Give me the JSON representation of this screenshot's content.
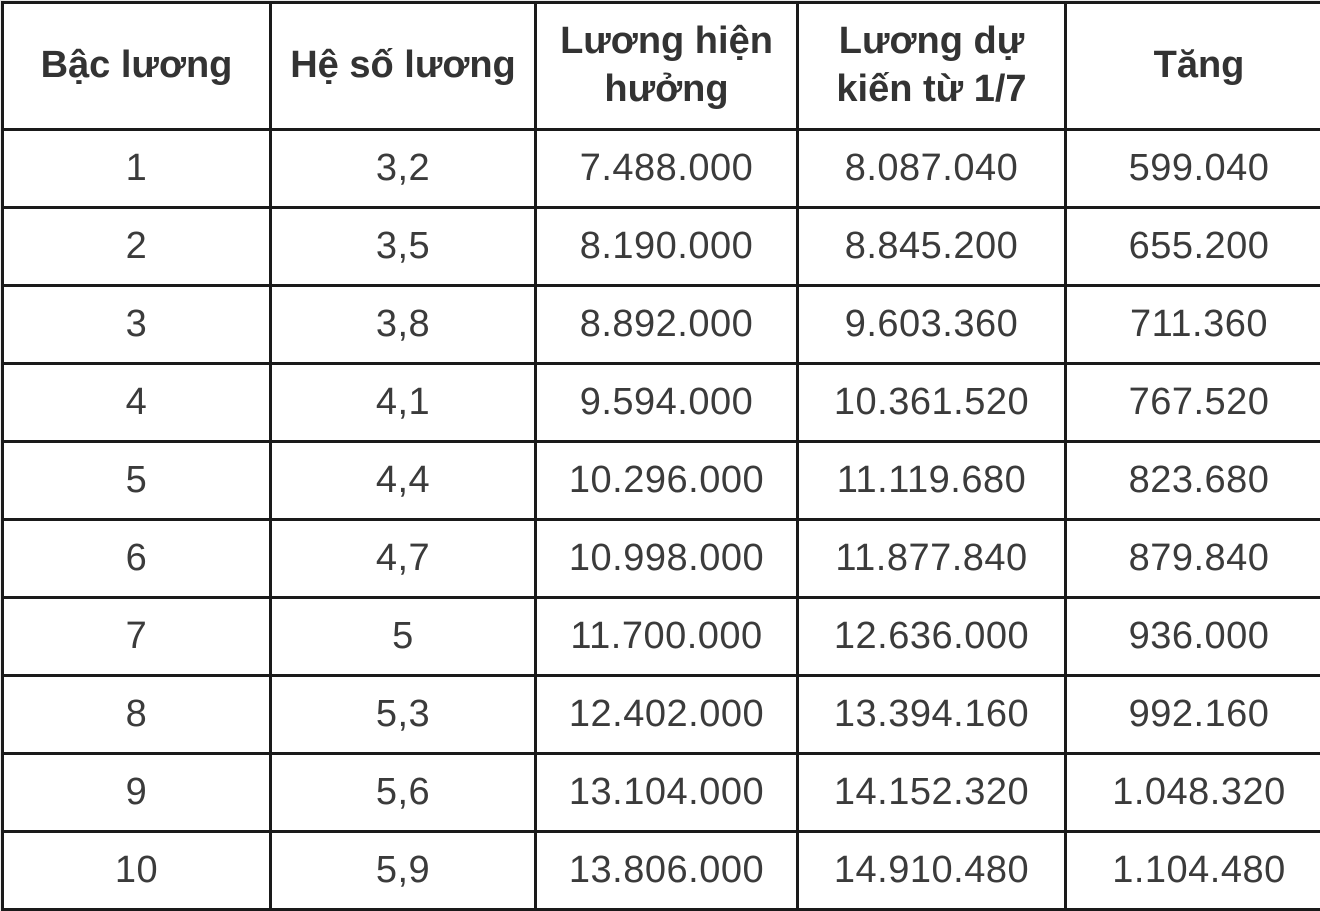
{
  "page": {
    "background_color": "#e9e9e9",
    "table_background_color": "#ffffff",
    "grid_border_color": "#1a1a1a",
    "header_text_color": "#333333",
    "cell_text_color": "#3b3b3b"
  },
  "salary_table": {
    "columns": [
      "Bậc lương",
      "Hệ số lương",
      "Lương hiện\nhưởng",
      "Lương dự\nkiến từ 1/7",
      "Tăng"
    ],
    "rows": [
      [
        "1",
        "3,2",
        "7.488.000",
        "8.087.040",
        "599.040"
      ],
      [
        "2",
        "3,5",
        "8.190.000",
        "8.845.200",
        "655.200"
      ],
      [
        "3",
        "3,8",
        "8.892.000",
        "9.603.360",
        "711.360"
      ],
      [
        "4",
        "4,1",
        "9.594.000",
        "10.361.520",
        "767.520"
      ],
      [
        "5",
        "4,4",
        "10.296.000",
        "11.119.680",
        "823.680"
      ],
      [
        "6",
        "4,7",
        "10.998.000",
        "11.877.840",
        "879.840"
      ],
      [
        "7",
        "5",
        "11.700.000",
        "12.636.000",
        "936.000"
      ],
      [
        "8",
        "5,3",
        "12.402.000",
        "13.394.160",
        "992.160"
      ],
      [
        "9",
        "5,6",
        "13.104.000",
        "14.152.320",
        "1.048.320"
      ],
      [
        "10",
        "5,9",
        "13.806.000",
        "14.910.480",
        "1.104.480"
      ]
    ]
  }
}
